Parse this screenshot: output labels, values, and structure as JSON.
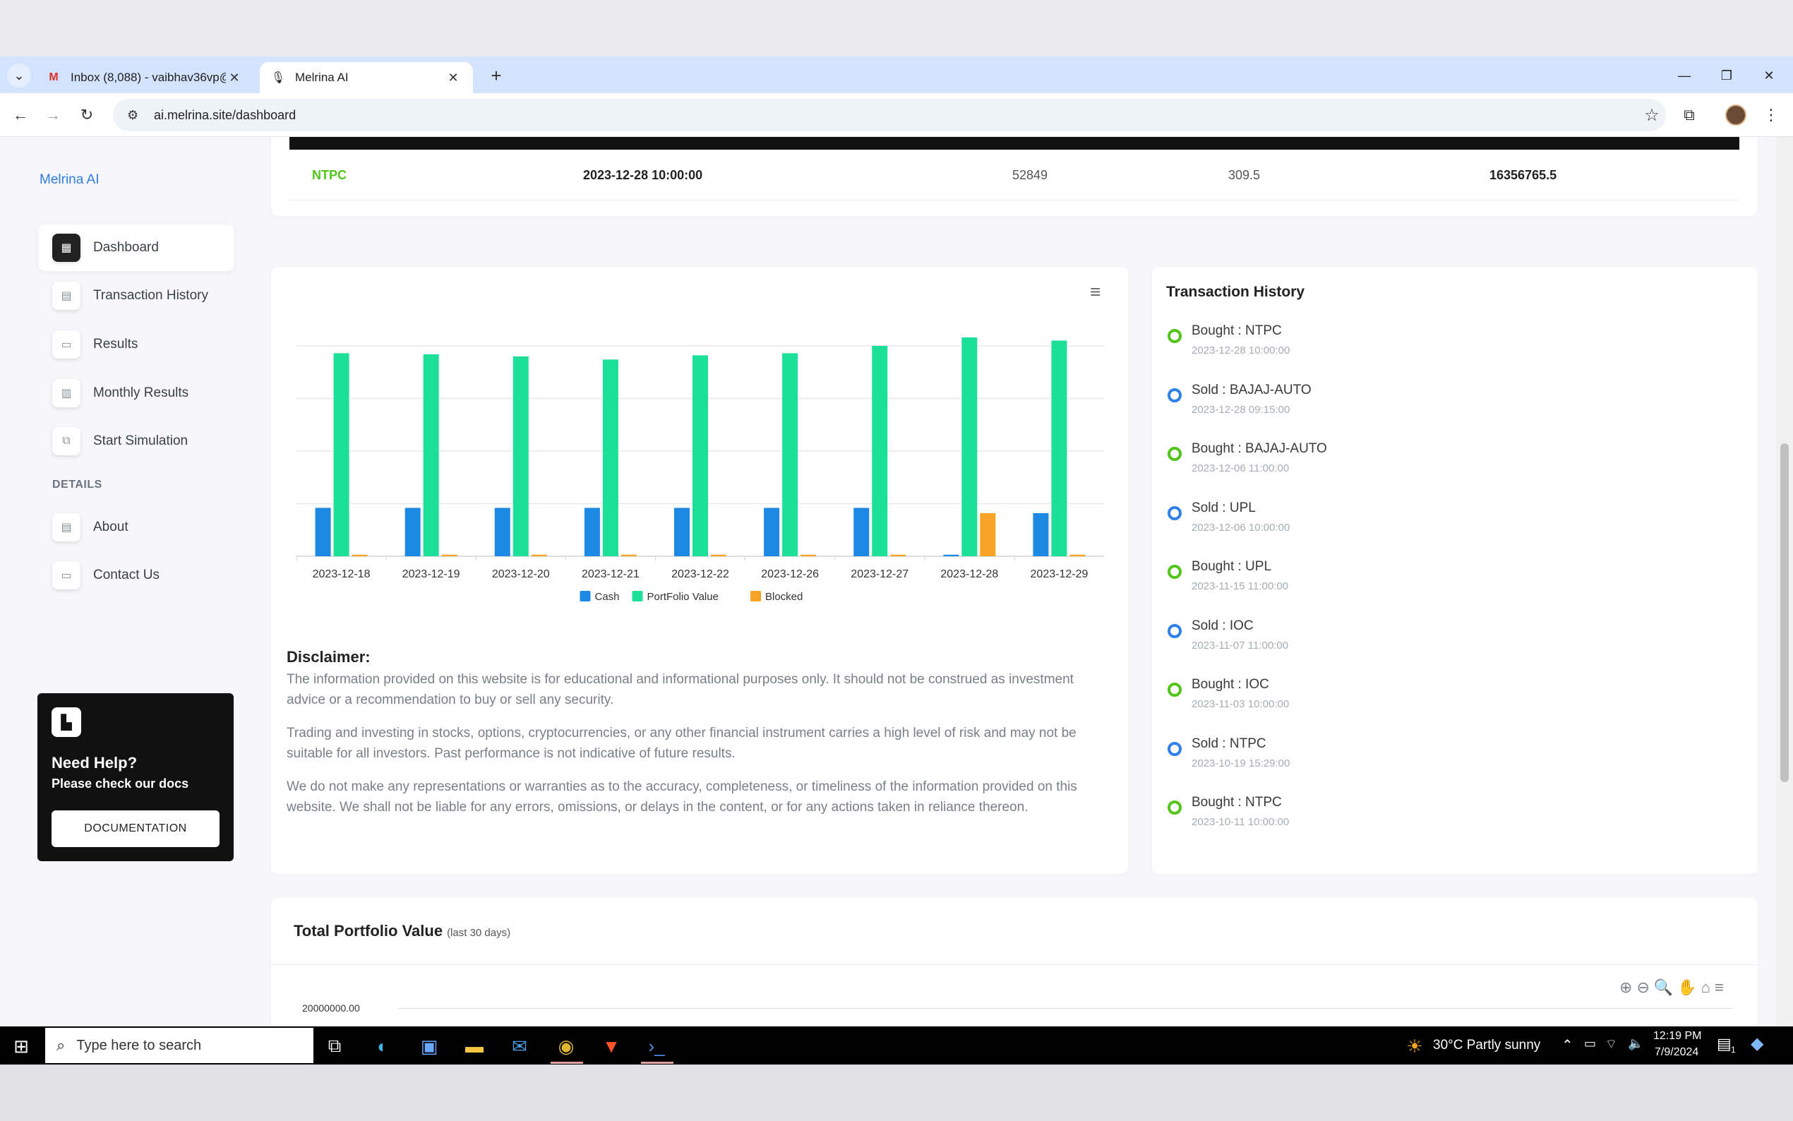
{
  "browser": {
    "tabs": [
      {
        "title": "Inbox (8,088) - vaibhav36vp@g",
        "icon": "gmail-icon"
      },
      {
        "title": "Melrina AI",
        "icon": "microphone-icon"
      }
    ],
    "url": "ai.melrina.site/dashboard"
  },
  "sidebar": {
    "brand": "Melrina AI",
    "items": [
      {
        "label": "Dashboard",
        "active": true
      },
      {
        "label": "Transaction History"
      },
      {
        "label": "Results"
      },
      {
        "label": "Monthly Results"
      },
      {
        "label": "Start Simulation"
      }
    ],
    "section": "DETAILS",
    "details_items": [
      {
        "label": "About"
      },
      {
        "label": "Contact Us"
      }
    ],
    "help": {
      "title": "Need Help?",
      "subtitle": "Please check our docs",
      "button": "DOCUMENTATION"
    }
  },
  "table_row": {
    "symbol": "NTPC",
    "datetime": "2023-12-28 10:00:00",
    "quantity": "52849",
    "price": "309.5",
    "total": "16356765.5"
  },
  "chart_data": {
    "type": "bar",
    "categories": [
      "2023-12-18",
      "2023-12-19",
      "2023-12-20",
      "2023-12-21",
      "2023-12-22",
      "2023-12-26",
      "2023-12-27",
      "2023-12-28",
      "2023-12-29"
    ],
    "series": [
      {
        "name": "Cash",
        "color": "#1e88e5",
        "values": [
          4.6,
          4.6,
          4.6,
          4.6,
          4.6,
          4.6,
          4.6,
          0.15,
          4.1
        ]
      },
      {
        "name": "PortFolio Value",
        "color": "#1de098",
        "values": [
          19.3,
          19.2,
          19.0,
          18.7,
          19.1,
          19.3,
          20.0,
          20.8,
          20.5
        ]
      },
      {
        "name": "Blocked",
        "color": "#f7a325",
        "values": [
          0.15,
          0.15,
          0.15,
          0.15,
          0.15,
          0.15,
          0.15,
          4.1,
          0.15
        ]
      }
    ],
    "ylim": [
      0,
      20
    ],
    "legend": "bottom-center",
    "grid": true
  },
  "disclaimer": {
    "title": "Disclaimer:",
    "paragraphs": [
      "The information provided on this website is for educational and informational purposes only. It should not be construed as investment advice or a recommendation to buy or sell any security.",
      "Trading and investing in stocks, options, cryptocurrencies, or any other financial instrument carries a high level of risk and may not be suitable for all investors. Past performance is not indicative of future results.",
      "We do not make any representations or warranties as to the accuracy, completeness, or timeliness of the information provided on this website. We shall not be liable for any errors, omissions, or delays in the content, or for any actions taken in reliance thereon."
    ]
  },
  "history": {
    "title": "Transaction History",
    "items": [
      {
        "action": "Bought : NTPC",
        "time": "2023-12-28 10:00:00",
        "type": "bought"
      },
      {
        "action": "Sold : BAJAJ-AUTO",
        "time": "2023-12-28 09:15:00",
        "type": "sold"
      },
      {
        "action": "Bought : BAJAJ-AUTO",
        "time": "2023-12-06 11:00:00",
        "type": "bought"
      },
      {
        "action": "Sold : UPL",
        "time": "2023-12-06 10:00:00",
        "type": "sold"
      },
      {
        "action": "Bought : UPL",
        "time": "2023-11-15 11:00:00",
        "type": "bought"
      },
      {
        "action": "Sold : IOC",
        "time": "2023-11-07 11:00:00",
        "type": "sold"
      },
      {
        "action": "Bought : IOC",
        "time": "2023-11-03 10:00:00",
        "type": "bought"
      },
      {
        "action": "Sold : NTPC",
        "time": "2023-10-19 15:29:00",
        "type": "sold"
      },
      {
        "action": "Bought : NTPC",
        "time": "2023-10-11 10:00:00",
        "type": "bought"
      }
    ]
  },
  "portfolio": {
    "title": "Total Portfolio Value",
    "subtitle": "(last 30 days)",
    "ytick_top": "20000000.00"
  },
  "taskbar": {
    "search_placeholder": "Type here to search",
    "weather": "30°C  Partly sunny",
    "time": "12:19 PM",
    "date": "7/9/2024",
    "notification_count": "1"
  }
}
